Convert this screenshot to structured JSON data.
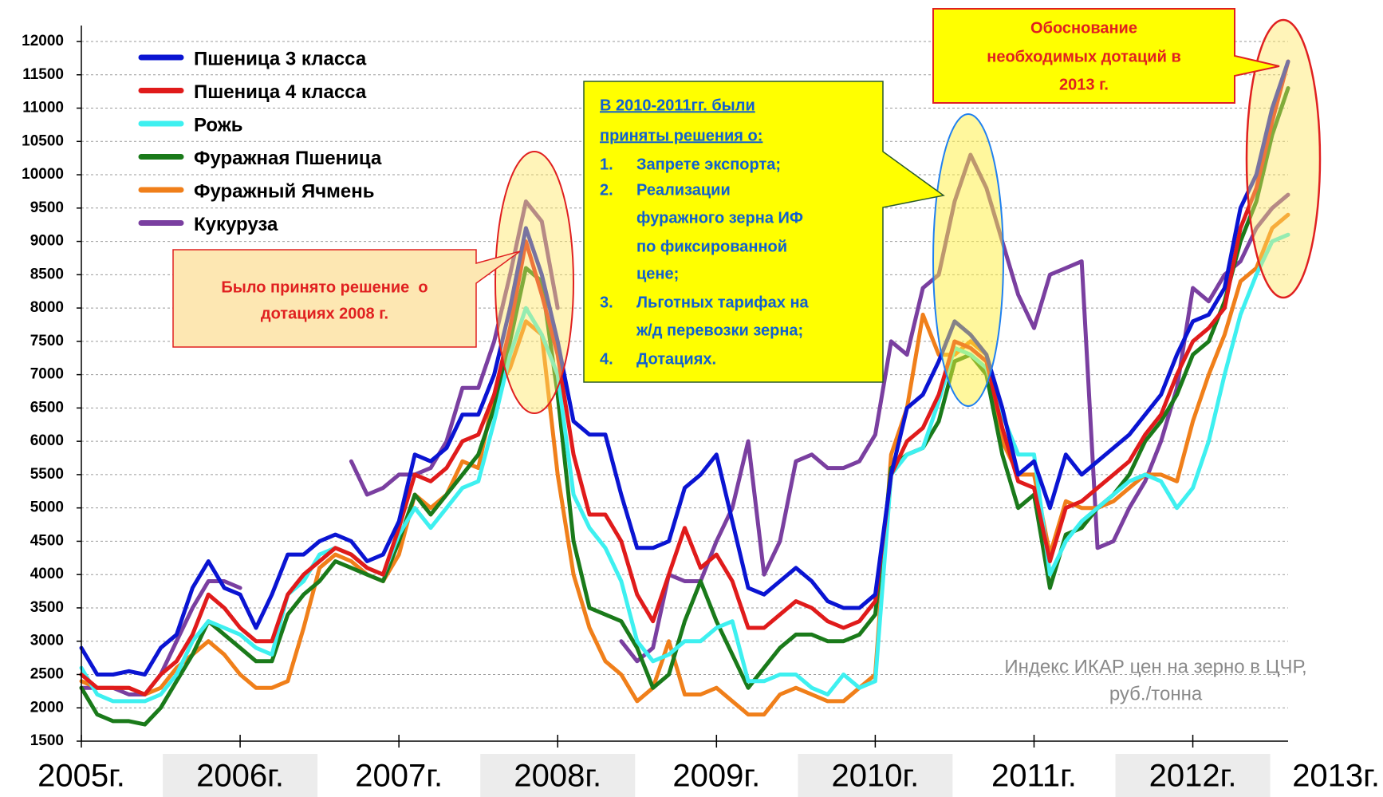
{
  "chart_data": {
    "type": "line",
    "x": [
      2005,
      2005.1,
      2005.2,
      2005.3,
      2005.4,
      2005.5,
      2005.6,
      2005.7,
      2005.8,
      2005.9,
      2006,
      2006.1,
      2006.2,
      2006.3,
      2006.4,
      2006.5,
      2006.6,
      2006.7,
      2006.8,
      2006.9,
      2007,
      2007.1,
      2007.2,
      2007.3,
      2007.4,
      2007.5,
      2007.6,
      2007.7,
      2007.8,
      2007.9,
      2008,
      2008.1,
      2008.2,
      2008.3,
      2008.4,
      2008.5,
      2008.6,
      2008.7,
      2008.8,
      2008.9,
      2009,
      2009.1,
      2009.2,
      2009.3,
      2009.4,
      2009.5,
      2009.6,
      2009.7,
      2009.8,
      2009.9,
      2010,
      2010.1,
      2010.2,
      2010.3,
      2010.4,
      2010.5,
      2010.6,
      2010.7,
      2010.8,
      2010.9,
      2011,
      2011.1,
      2011.2,
      2011.3,
      2011.4,
      2011.5,
      2011.6,
      2011.7,
      2011.8,
      2011.9,
      2012,
      2012.1,
      2012.2,
      2012.3,
      2012.4,
      2012.5,
      2012.6
    ],
    "xlim": [
      2005,
      2012.6
    ],
    "xticks": [
      {
        "value": 2005,
        "label": "2005г."
      },
      {
        "value": 2006,
        "label": "2006г."
      },
      {
        "value": 2007,
        "label": "2007г."
      },
      {
        "value": 2008,
        "label": "2008г."
      },
      {
        "value": 2009,
        "label": "2009г."
      },
      {
        "value": 2010,
        "label": "2010г."
      },
      {
        "value": 2011,
        "label": "2011г."
      },
      {
        "value": 2012,
        "label": "2012г."
      },
      {
        "value": 2013,
        "label": "2013г."
      }
    ],
    "ylim": [
      1500,
      12000
    ],
    "yticks": [
      1500,
      2000,
      2500,
      3000,
      3500,
      4000,
      4500,
      5000,
      5500,
      6000,
      6500,
      7000,
      7500,
      8000,
      8500,
      9000,
      9500,
      10000,
      10500,
      11000,
      11500,
      12000
    ],
    "grid": true,
    "legend": "upper left",
    "series": [
      {
        "name": "Пшеница 3 класса",
        "color": "#0a14d2",
        "values": [
          2900,
          2500,
          2500,
          2550,
          2500,
          2900,
          3100,
          3800,
          4200,
          3800,
          3700,
          3200,
          3700,
          4300,
          4300,
          4500,
          4600,
          4500,
          4200,
          4300,
          4800,
          5800,
          5700,
          5900,
          6400,
          6400,
          7000,
          8000,
          9200,
          8500,
          7500,
          6300,
          6100,
          6100,
          5200,
          4400,
          4400,
          4500,
          5300,
          5500,
          5800,
          4800,
          3800,
          3700,
          3900,
          4100,
          3900,
          3600,
          3500,
          3500,
          3700,
          5500,
          6500,
          6700,
          7200,
          7800,
          7600,
          7300,
          6500,
          5500,
          5700,
          5000,
          5800,
          5500,
          5700,
          5900,
          6100,
          6400,
          6700,
          7300,
          7800,
          7900,
          8300,
          9500,
          10000,
          11000,
          11700
        ]
      },
      {
        "name": "Пшеница 4 класса",
        "color": "#e01b1b",
        "values": [
          2500,
          2300,
          2300,
          2300,
          2200,
          2500,
          2700,
          3100,
          3700,
          3500,
          3200,
          3000,
          3000,
          3700,
          4000,
          4200,
          4400,
          4300,
          4100,
          4000,
          4700,
          5500,
          5400,
          5600,
          6000,
          6100,
          6700,
          7700,
          9000,
          8200,
          7300,
          5800,
          4900,
          4900,
          4500,
          3700,
          3300,
          4000,
          4700,
          4100,
          4300,
          3900,
          3200,
          3200,
          3400,
          3600,
          3500,
          3300,
          3200,
          3300,
          3600,
          5500,
          6000,
          6200,
          6700,
          7500,
          7400,
          7200,
          6200,
          5400,
          5300,
          4200,
          5000,
          5100,
          5300,
          5500,
          5700,
          6100,
          6400,
          7000,
          7500,
          7700,
          8000,
          9200,
          9800,
          10800,
          11700
        ]
      },
      {
        "name": "Рожь",
        "color": "#3ef0f0",
        "values": [
          2600,
          2200,
          2100,
          2100,
          2100,
          2200,
          2500,
          3000,
          3300,
          3200,
          3100,
          2900,
          2800,
          3700,
          3900,
          4300,
          4400,
          4300,
          4100,
          4000,
          4600,
          5000,
          4700,
          5000,
          5300,
          5400,
          6300,
          7300,
          8000,
          7600,
          7000,
          5200,
          4700,
          4400,
          3900,
          3000,
          2700,
          2800,
          3000,
          3000,
          3200,
          3300,
          2400,
          2400,
          2500,
          2500,
          2300,
          2200,
          2500,
          2300,
          2400,
          5500,
          5800,
          5900,
          6600,
          7400,
          7300,
          7100,
          6400,
          5800,
          5800,
          4000,
          4500,
          4800,
          5000,
          5200,
          5400,
          5500,
          5400,
          5000,
          5300,
          6000,
          7000,
          7900,
          8500,
          9000,
          9100
        ]
      },
      {
        "name": "Фуражная Пшеница",
        "color": "#1a7a1a",
        "values": [
          2300,
          1900,
          1800,
          1800,
          1750,
          2000,
          2400,
          2800,
          3300,
          3100,
          2900,
          2700,
          2700,
          3400,
          3700,
          3900,
          4200,
          4100,
          4000,
          3900,
          4500,
          5200,
          4900,
          5200,
          5500,
          5800,
          6500,
          7500,
          8600,
          8400,
          6700,
          4500,
          3500,
          3400,
          3300,
          2900,
          2300,
          2500,
          3300,
          3900,
          3300,
          2800,
          2300,
          2600,
          2900,
          3100,
          3100,
          3000,
          3000,
          3100,
          3400,
          5600,
          5800,
          5900,
          6300,
          7200,
          7300,
          7000,
          5800,
          5000,
          5200,
          3800,
          4600,
          4700,
          5000,
          5200,
          5500,
          6000,
          6300,
          6700,
          7300,
          7500,
          8100,
          9000,
          9600,
          10600,
          11300
        ]
      },
      {
        "name": "Фуражный Ячмень",
        "color": "#f07f1a",
        "values": [
          2400,
          2300,
          2300,
          2300,
          2200,
          2300,
          2600,
          2800,
          3000,
          2800,
          2500,
          2300,
          2300,
          2400,
          3200,
          4100,
          4300,
          4200,
          4000,
          3900,
          4300,
          5200,
          5000,
          5200,
          5700,
          5600,
          6700,
          7100,
          7800,
          7600,
          5500,
          4000,
          3200,
          2700,
          2500,
          2100,
          2300,
          3000,
          2200,
          2200,
          2300,
          2100,
          1900,
          1900,
          2200,
          2300,
          2200,
          2100,
          2100,
          2300,
          2500,
          5800,
          6500,
          7900,
          7300,
          7300,
          7500,
          7300,
          6000,
          5500,
          5500,
          4300,
          5100,
          5000,
          5000,
          5100,
          5300,
          5500,
          5500,
          5400,
          6300,
          7000,
          7600,
          8400,
          8600,
          9200,
          9400
        ]
      },
      {
        "name": "Кукуруза",
        "color": "#7a3fa0",
        "values": [
          2300,
          2300,
          2300,
          2200,
          2200,
          2500,
          3000,
          3500,
          3900,
          3900,
          3800,
          null,
          null,
          null,
          null,
          null,
          null,
          5700,
          5200,
          5300,
          5500,
          5500,
          5600,
          6000,
          6800,
          6800,
          7500,
          8500,
          9600,
          9300,
          8000,
          null,
          null,
          null,
          3000,
          2700,
          2900,
          4000,
          3900,
          3900,
          4500,
          5000,
          6000,
          4000,
          4500,
          5700,
          5800,
          5600,
          5600,
          5700,
          6100,
          7500,
          7300,
          8300,
          8500,
          9600,
          10300,
          9800,
          9000,
          8200,
          7700,
          8500,
          8600,
          8700,
          4400,
          4500,
          5000,
          5400,
          6000,
          6800,
          8300,
          8100,
          8500,
          8700,
          9200,
          9500,
          9700
        ]
      }
    ],
    "annotations": {
      "decision_2008": [
        "Было принято решение  о",
        "дотациях 2008 г."
      ],
      "measures_title": [
        "В 2010-2011гг. были",
        "приняты решения о:"
      ],
      "measures": [
        {
          "number": "1.",
          "lines": [
            "Запрете экспорта;"
          ]
        },
        {
          "number": "2.",
          "lines": [
            "Реализации",
            "фуражного зерна ИФ",
            "по фиксированной",
            "цене;"
          ]
        },
        {
          "number": "3.",
          "lines": [
            "Льготных тарифах на",
            "ж/д перевозки зерна;"
          ]
        },
        {
          "number": "4.",
          "lines": [
            "Дотациях."
          ]
        }
      ],
      "justification_2013": [
        "Обоснование",
        "необходимых дотаций в",
        "2013 г."
      ],
      "index_note": [
        "Индекс ИКАР цен на зерно в ЦЧР,",
        "руб./тонна"
      ]
    }
  }
}
